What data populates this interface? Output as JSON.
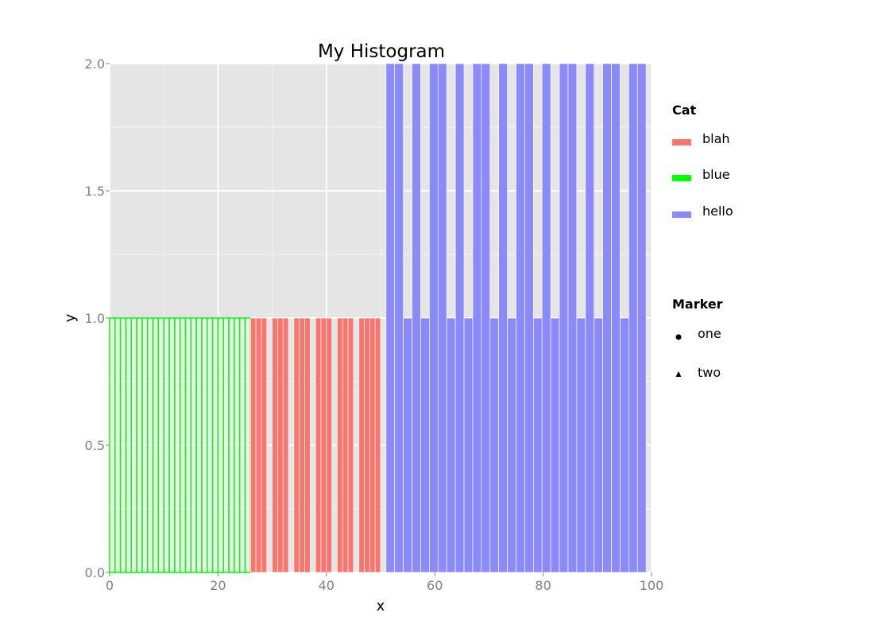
{
  "chart_data": {
    "type": "bar",
    "title": "My Histogram",
    "xlabel": "x",
    "ylabel": "y",
    "xlim": [
      0,
      100
    ],
    "ylim": [
      0,
      2
    ],
    "x_ticks": [
      "0",
      "20",
      "40",
      "60",
      "80",
      "100"
    ],
    "y_ticks": [
      "0.0",
      "0.5",
      "1.0",
      "1.5",
      "2.0"
    ],
    "grid": true,
    "legend_position": "right",
    "legend": {
      "fill_title": "Cat",
      "fill_entries": [
        {
          "label": "blah",
          "color": "#f8766d"
        },
        {
          "label": "blue",
          "color": "#00ff00"
        },
        {
          "label": "hello",
          "color": "#8a8af8"
        }
      ],
      "shape_title": "Marker",
      "shape_entries": [
        {
          "label": "one",
          "shape": "circle"
        },
        {
          "label": "two",
          "shape": "triangle"
        }
      ]
    },
    "series": [
      {
        "name": "blue",
        "color": "#00ff00",
        "bars": [
          {
            "x0": 0,
            "x1": 1,
            "y": 1
          },
          {
            "x0": 1,
            "x1": 2,
            "y": 1
          },
          {
            "x0": 2,
            "x1": 3,
            "y": 1
          },
          {
            "x0": 3,
            "x1": 4,
            "y": 1
          },
          {
            "x0": 4,
            "x1": 5,
            "y": 1
          },
          {
            "x0": 5,
            "x1": 6,
            "y": 1
          },
          {
            "x0": 6,
            "x1": 7,
            "y": 1
          },
          {
            "x0": 7,
            "x1": 8,
            "y": 1
          },
          {
            "x0": 8,
            "x1": 9,
            "y": 1
          },
          {
            "x0": 9,
            "x1": 10,
            "y": 1
          },
          {
            "x0": 10,
            "x1": 11,
            "y": 1
          },
          {
            "x0": 11,
            "x1": 12,
            "y": 1
          },
          {
            "x0": 12,
            "x1": 13,
            "y": 1
          },
          {
            "x0": 13,
            "x1": 14,
            "y": 1
          },
          {
            "x0": 14,
            "x1": 15,
            "y": 1
          },
          {
            "x0": 15,
            "x1": 16,
            "y": 1
          },
          {
            "x0": 16,
            "x1": 17,
            "y": 1
          },
          {
            "x0": 17,
            "x1": 18,
            "y": 1
          },
          {
            "x0": 18,
            "x1": 19,
            "y": 1
          },
          {
            "x0": 19,
            "x1": 20,
            "y": 1
          },
          {
            "x0": 20,
            "x1": 21,
            "y": 1
          },
          {
            "x0": 21,
            "x1": 22,
            "y": 1
          },
          {
            "x0": 22,
            "x1": 23,
            "y": 1
          },
          {
            "x0": 23,
            "x1": 24,
            "y": 1
          },
          {
            "x0": 24,
            "x1": 25,
            "y": 1
          },
          {
            "x0": 25,
            "x1": 26,
            "y": 1
          }
        ]
      },
      {
        "name": "blah",
        "color": "#f8766d",
        "bars": [
          {
            "x0": 26,
            "x1": 27,
            "y": 1
          },
          {
            "x0": 27,
            "x1": 28,
            "y": 1
          },
          {
            "x0": 28,
            "x1": 29,
            "y": 1
          },
          {
            "x0": 30,
            "x1": 31,
            "y": 1
          },
          {
            "x0": 31,
            "x1": 32,
            "y": 1
          },
          {
            "x0": 32,
            "x1": 33,
            "y": 1
          },
          {
            "x0": 34,
            "x1": 35,
            "y": 1
          },
          {
            "x0": 35,
            "x1": 36,
            "y": 1
          },
          {
            "x0": 36,
            "x1": 37,
            "y": 1
          },
          {
            "x0": 38,
            "x1": 39,
            "y": 1
          },
          {
            "x0": 39,
            "x1": 40,
            "y": 1
          },
          {
            "x0": 40,
            "x1": 41,
            "y": 1
          },
          {
            "x0": 42,
            "x1": 43,
            "y": 1
          },
          {
            "x0": 43,
            "x1": 44,
            "y": 1
          },
          {
            "x0": 44,
            "x1": 45,
            "y": 1
          },
          {
            "x0": 46,
            "x1": 47,
            "y": 1
          },
          {
            "x0": 47,
            "x1": 48,
            "y": 1
          },
          {
            "x0": 48,
            "x1": 49,
            "y": 1
          },
          {
            "x0": 49,
            "x1": 50,
            "y": 1
          }
        ]
      },
      {
        "name": "hello",
        "color": "#8a8af8",
        "bars": [
          {
            "x0": 51,
            "x1": 52.6,
            "y": 2
          },
          {
            "x0": 52.6,
            "x1": 54.2,
            "y": 2
          },
          {
            "x0": 54.2,
            "x1": 55.8,
            "y": 1
          },
          {
            "x0": 55.8,
            "x1": 57.4,
            "y": 2
          },
          {
            "x0": 57.4,
            "x1": 59,
            "y": 1
          },
          {
            "x0": 59,
            "x1": 60.6,
            "y": 2
          },
          {
            "x0": 60.6,
            "x1": 62.2,
            "y": 2
          },
          {
            "x0": 62.2,
            "x1": 63.8,
            "y": 1
          },
          {
            "x0": 63.8,
            "x1": 65.4,
            "y": 2
          },
          {
            "x0": 65.4,
            "x1": 67,
            "y": 1
          },
          {
            "x0": 67,
            "x1": 68.6,
            "y": 2
          },
          {
            "x0": 68.6,
            "x1": 70.2,
            "y": 2
          },
          {
            "x0": 70.2,
            "x1": 71.8,
            "y": 1
          },
          {
            "x0": 71.8,
            "x1": 73.4,
            "y": 2
          },
          {
            "x0": 73.4,
            "x1": 75,
            "y": 1
          },
          {
            "x0": 75,
            "x1": 76.6,
            "y": 2
          },
          {
            "x0": 76.6,
            "x1": 78.2,
            "y": 2
          },
          {
            "x0": 78.2,
            "x1": 79.8,
            "y": 1
          },
          {
            "x0": 79.8,
            "x1": 81.4,
            "y": 2
          },
          {
            "x0": 81.4,
            "x1": 83,
            "y": 1
          },
          {
            "x0": 83,
            "x1": 84.6,
            "y": 2
          },
          {
            "x0": 84.6,
            "x1": 86.2,
            "y": 2
          },
          {
            "x0": 86.2,
            "x1": 87.8,
            "y": 1
          },
          {
            "x0": 87.8,
            "x1": 89.4,
            "y": 2
          },
          {
            "x0": 89.4,
            "x1": 91,
            "y": 1
          },
          {
            "x0": 91,
            "x1": 92.6,
            "y": 2
          },
          {
            "x0": 92.6,
            "x1": 94.2,
            "y": 2
          },
          {
            "x0": 94.2,
            "x1": 95.8,
            "y": 1
          },
          {
            "x0": 95.8,
            "x1": 97.4,
            "y": 2
          },
          {
            "x0": 97.4,
            "x1": 99,
            "y": 2
          }
        ]
      }
    ]
  }
}
